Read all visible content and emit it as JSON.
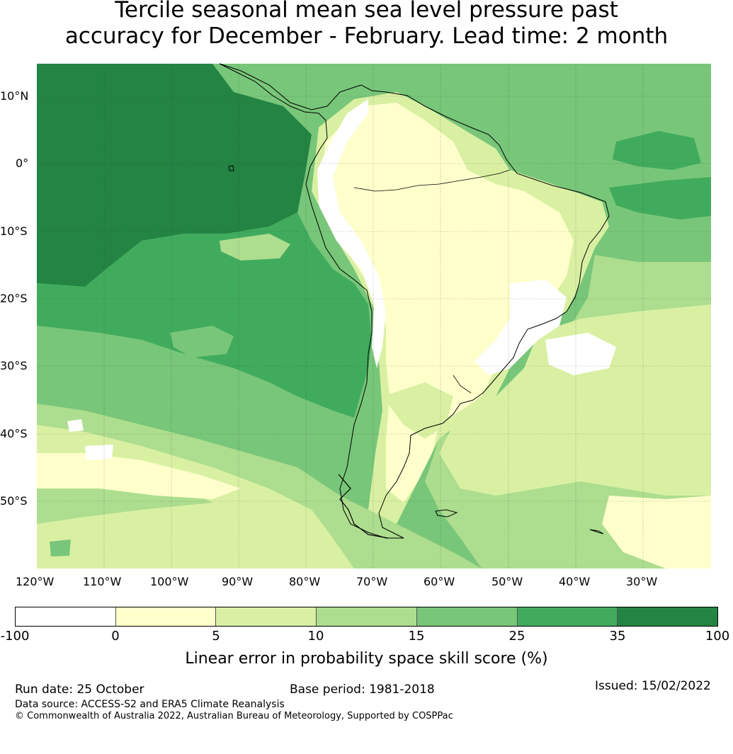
{
  "title_line1": "Tercile seasonal mean sea level pressure past",
  "title_line2": "accuracy for December - February. Lead time: 2 month",
  "map": {
    "lat_labels": [
      "10°N",
      "0°",
      "10°S",
      "20°S",
      "30°S",
      "40°S",
      "50°S"
    ],
    "lon_labels": [
      "120°W",
      "110°W",
      "100°W",
      "90°W",
      "80°W",
      "70°W",
      "60°W",
      "50°W",
      "40°W",
      "30°W"
    ],
    "extent": {
      "lon": [
        -120,
        -20
      ],
      "lat": [
        -60,
        15
      ]
    },
    "region": "South America"
  },
  "colorbar": {
    "ticks": [
      "-100",
      "0",
      "5",
      "10",
      "15",
      "25",
      "35",
      "100"
    ],
    "colors": [
      "#ffffff",
      "#ffffcc",
      "#d9f0a3",
      "#addd8e",
      "#78c679",
      "#41ab5d",
      "#238443"
    ],
    "label": "Linear error in probability space skill score (%)"
  },
  "footer": {
    "run_date": "Run date: 25 October",
    "base_period": "Base period: 1981-2018",
    "issued": "Issued: 15/02/2022",
    "data_source": "Data source: ACCESS-S2 and ERA5 Climate Reanalysis",
    "copyright": "© Commonwealth of Australia 2022, Australian Bureau of Meteorology, Supported by COSPPac"
  }
}
